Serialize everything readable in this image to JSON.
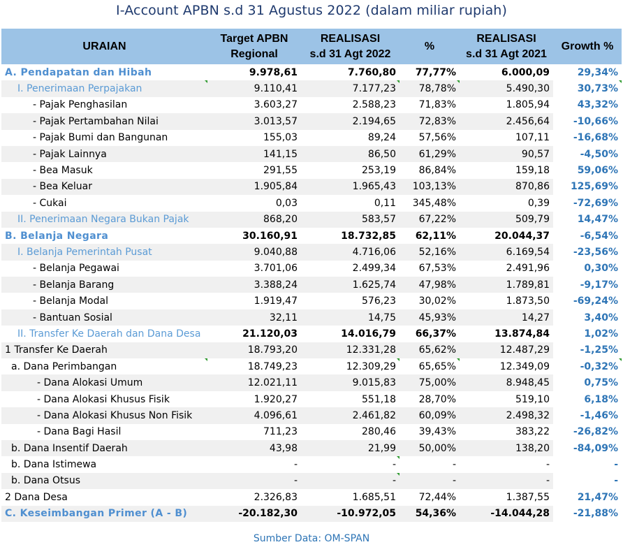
{
  "title": "I-Account APBN s.d 31 Agustus 2022 (dalam miliar rupiah)",
  "source": "Sumber Data: OM-SPAN",
  "colors": {
    "header_bg": "#9cc3e6",
    "accent_blue": "#2e75b6",
    "title_color": "#1f3a6e"
  },
  "header": {
    "uraian": "URAIAN",
    "target_l1": "Target APBN",
    "target_l2": "Regional",
    "real22_l1": "REALISASI",
    "real22_l2": "s.d  31 Agt 2022",
    "pct": "%",
    "real21_l1": "REALISASI",
    "real21_l2": "s.d 31 Agt 2021",
    "growth": "Growth %"
  },
  "rows": [
    {
      "label": "A. Pendapatan dan Hibah",
      "target": "9.978,61",
      "real22": "7.760,80",
      "pct": "77,77%",
      "real21": "6.000,09",
      "growth": "29,34%"
    },
    {
      "label": "I. Penerimaan Perpajakan",
      "target": "9.110,41",
      "real22": "7.177,23",
      "pct": "78,78%",
      "real21": "5.490,30",
      "growth": "30,73%"
    },
    {
      "label": "- Pajak Penghasilan",
      "target": "3.603,27",
      "real22": "2.588,23",
      "pct": "71,83%",
      "real21": "1.805,94",
      "growth": "43,32%"
    },
    {
      "label": "- Pajak Pertambahan Nilai",
      "target": "3.013,57",
      "real22": "2.194,65",
      "pct": "72,83%",
      "real21": "2.456,64",
      "growth": "-10,66%"
    },
    {
      "label": "- Pajak Bumi dan Bangunan",
      "target": "155,03",
      "real22": "89,24",
      "pct": "57,56%",
      "real21": "107,11",
      "growth": "-16,68%"
    },
    {
      "label": "- Pajak Lainnya",
      "target": "141,15",
      "real22": "86,50",
      "pct": "61,29%",
      "real21": "90,57",
      "growth": "-4,50%"
    },
    {
      "label": "- Bea Masuk",
      "target": "291,55",
      "real22": "253,19",
      "pct": "86,84%",
      "real21": "159,18",
      "growth": "59,06%"
    },
    {
      "label": "- Bea  Keluar",
      "target": "1.905,84",
      "real22": "1.965,43",
      "pct": "103,13%",
      "real21": "870,86",
      "growth": "125,69%"
    },
    {
      "label": "- Cukai",
      "target": "0,03",
      "real22": "0,11",
      "pct": "345,48%",
      "real21": "0,39",
      "growth": "-72,69%"
    },
    {
      "label": "II. Penerimaan Negara Bukan Pajak",
      "target": "868,20",
      "real22": "583,57",
      "pct": "67,22%",
      "real21": "509,79",
      "growth": "14,47%"
    },
    {
      "label": "B. Belanja Negara",
      "target": "30.160,91",
      "real22": "18.732,85",
      "pct": "62,11%",
      "real21": "20.044,37",
      "growth": "-6,54%"
    },
    {
      "label": "I. Belanja Pemerintah Pusat",
      "target": "9.040,88",
      "real22": "4.716,06",
      "pct": "52,16%",
      "real21": "6.169,54",
      "growth": "-23,56%"
    },
    {
      "label": "- Belanja Pegawai",
      "target": "3.701,06",
      "real22": "2.499,34",
      "pct": "67,53%",
      "real21": "2.491,96",
      "growth": "0,30%"
    },
    {
      "label": "- Belanja Barang",
      "target": "3.388,24",
      "real22": "1.625,74",
      "pct": "47,98%",
      "real21": "1.789,81",
      "growth": "-9,17%"
    },
    {
      "label": "- Belanja Modal",
      "target": "1.919,47",
      "real22": "576,23",
      "pct": "30,02%",
      "real21": "1.873,50",
      "growth": "-69,24%"
    },
    {
      "label": "- Bantuan Sosial",
      "target": "32,11",
      "real22": "14,75",
      "pct": "45,93%",
      "real21": "14,27",
      "growth": "3,40%"
    },
    {
      "label": "II. Transfer Ke Daerah dan Dana Desa",
      "target": "21.120,03",
      "real22": "14.016,79",
      "pct": "66,37%",
      "real21": "13.874,84",
      "growth": "1,02%"
    },
    {
      "label": "1 Transfer Ke Daerah",
      "target": "18.793,20",
      "real22": "12.331,28",
      "pct": "65,62%",
      "real21": "12.487,29",
      "growth": "-1,25%"
    },
    {
      "label": "a. Dana Perimbangan",
      "target": "18.749,23",
      "real22": "12.309,29",
      "pct": "65,65%",
      "real21": "12.349,09",
      "growth": "-0,32%"
    },
    {
      "label": "- Dana Alokasi Umum",
      "target": "12.021,11",
      "real22": "9.015,83",
      "pct": "75,00%",
      "real21": "8.948,45",
      "growth": "0,75%"
    },
    {
      "label": "- Dana Alokasi Khusus Fisik",
      "target": "1.920,27",
      "real22": "551,18",
      "pct": "28,70%",
      "real21": "519,10",
      "growth": "6,18%"
    },
    {
      "label": "- Dana Alokasi Khusus Non Fisik",
      "target": "4.096,61",
      "real22": "2.461,82",
      "pct": "60,09%",
      "real21": "2.498,32",
      "growth": "-1,46%"
    },
    {
      "label": "- Dana Bagi Hasil",
      "target": "711,23",
      "real22": "280,46",
      "pct": "39,43%",
      "real21": "383,22",
      "growth": "-26,82%"
    },
    {
      "label": "b. Dana Insentif Daerah",
      "target": "43,98",
      "real22": "21,99",
      "pct": "50,00%",
      "real21": "138,20",
      "growth": "-84,09%"
    },
    {
      "label": "b. Dana Istimewa",
      "target": "-",
      "real22": "-",
      "pct": "-",
      "real21": "-",
      "growth": "-"
    },
    {
      "label": "b. Dana Otsus",
      "target": "-",
      "real22": "-",
      "pct": "-",
      "real21": "-",
      "growth": "-"
    },
    {
      "label": "2 Dana Desa",
      "target": "2.326,83",
      "real22": "1.685,51",
      "pct": "72,44%",
      "real21": "1.387,55",
      "growth": "21,47%"
    },
    {
      "label": "C. Keseimbangan Primer (A - B)",
      "target": "-20.182,30",
      "real22": "-10.972,05",
      "pct": "54,36%",
      "real21": "-14.044,28",
      "growth": "-21,88%"
    }
  ]
}
